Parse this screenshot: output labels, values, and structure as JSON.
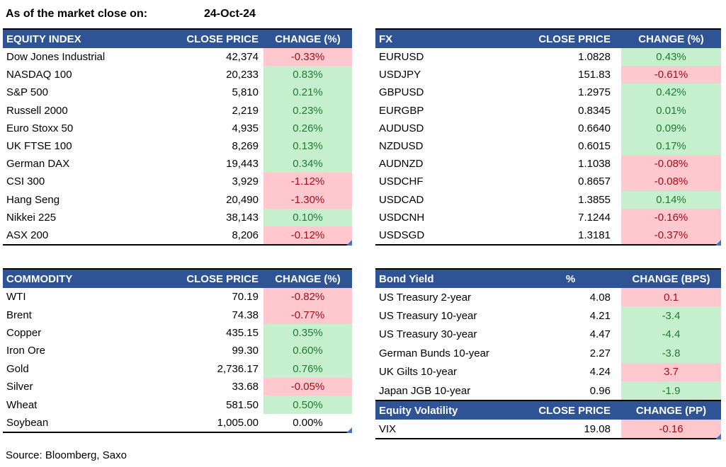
{
  "meta": {
    "as_of_label": "As of the market close on:",
    "as_of_date": "24-Oct-24",
    "source": "Source: Bloomberg, Saxo"
  },
  "colors": {
    "header_bg": "#2F5496",
    "header_text": "#FFFFFF",
    "positive_bg": "#C6EFCE",
    "positive_text": "#1E7B34",
    "negative_bg": "#FFC7CE",
    "negative_text": "#A50E15",
    "corner_marker_blue": "#4472C4",
    "error_marker_green": "#22A222"
  },
  "icons": {
    "error_marker": "formula-error-triangle (green, top-left of cell)",
    "corner_marker": "range-corner-marker (blue, bottom-right of table)"
  },
  "tables": [
    {
      "id": "equity",
      "columns": [
        "EQUITY INDEX",
        "CLOSE PRICE",
        "CHANGE (%)"
      ],
      "align_price_header": "right",
      "corner_marker": true,
      "rows": [
        {
          "name": "Dow Jones Industrial",
          "price": "42,374",
          "change": "-0.33%",
          "highlight": "red"
        },
        {
          "name": "NASDAQ 100",
          "price": "20,233",
          "change": "0.83%",
          "highlight": "green"
        },
        {
          "name": "S&P 500",
          "price": "5,810",
          "change": "0.21%",
          "highlight": "green"
        },
        {
          "name": "Russell 2000",
          "price": "2,219",
          "change": "0.23%",
          "highlight": "green"
        },
        {
          "name": "Euro Stoxx 50",
          "price": "4,935",
          "change": "0.26%",
          "highlight": "green"
        },
        {
          "name": "UK FTSE 100",
          "price": "8,269",
          "change": "0.13%",
          "highlight": "green"
        },
        {
          "name": "German DAX",
          "price": "19,443",
          "change": "0.34%",
          "highlight": "green"
        },
        {
          "name": "CSI 300",
          "price": "3,929",
          "change": "-1.12%",
          "highlight": "red"
        },
        {
          "name": "Hang Seng",
          "price": "20,490",
          "change": "-1.30%",
          "highlight": "red"
        },
        {
          "name": "Nikkei 225",
          "price": "38,143",
          "change": "0.10%",
          "highlight": "green"
        },
        {
          "name": "ASX 200",
          "price": "8,206",
          "change": "-0.12%",
          "highlight": "red"
        }
      ]
    },
    {
      "id": "fx",
      "columns": [
        "FX",
        "CLOSE PRICE",
        "CHANGE (%)"
      ],
      "align_price_header": "right",
      "corner_marker": true,
      "rows": [
        {
          "name": "EURUSD",
          "price": "1.0828",
          "change": "0.43%",
          "highlight": "green"
        },
        {
          "name": "USDJPY",
          "price": "151.83",
          "change": "-0.61%",
          "highlight": "red"
        },
        {
          "name": "GBPUSD",
          "price": "1.2975",
          "change": "0.42%",
          "highlight": "green"
        },
        {
          "name": "EURGBP",
          "price": "0.8345",
          "change": "0.01%",
          "highlight": "green"
        },
        {
          "name": "AUDUSD",
          "price": "0.6640",
          "change": "0.09%",
          "highlight": "green"
        },
        {
          "name": "NZDUSD",
          "price": "0.6015",
          "change": "0.17%",
          "highlight": "green"
        },
        {
          "name": "AUDNZD",
          "price": "1.1038",
          "change": "-0.08%",
          "highlight": "red"
        },
        {
          "name": "USDCHF",
          "price": "0.8657",
          "change": "-0.08%",
          "highlight": "red"
        },
        {
          "name": "USDCAD",
          "price": "1.3855",
          "change": "0.14%",
          "highlight": "green"
        },
        {
          "name": "USDCNH",
          "price": "7.1244",
          "change": "-0.16%",
          "highlight": "red"
        },
        {
          "name": "USDSGD",
          "price": "1.3181",
          "change": "-0.37%",
          "highlight": "red"
        }
      ]
    },
    {
      "id": "commodity",
      "columns": [
        "COMMODITY",
        "CLOSE PRICE",
        "CHANGE (%)"
      ],
      "align_price_header": "right",
      "corner_marker": true,
      "rows": [
        {
          "name": "WTI",
          "price": "70.19",
          "change": "-0.82%",
          "highlight": "red"
        },
        {
          "name": "Brent",
          "price": "74.38",
          "change": "-0.77%",
          "highlight": "red"
        },
        {
          "name": "Copper",
          "price": "435.15",
          "change": "0.35%",
          "highlight": "green"
        },
        {
          "name": "Iron Ore",
          "price": "99.30",
          "change": "0.60%",
          "highlight": "green"
        },
        {
          "name": "Gold",
          "price": "2,736.17",
          "change": "0.76%",
          "highlight": "green"
        },
        {
          "name": "Silver",
          "price": "33.68",
          "change": "-0.05%",
          "highlight": "red"
        },
        {
          "name": "Wheat",
          "price": "581.50",
          "change": "0.50%",
          "highlight": "green"
        },
        {
          "name": "Soybean",
          "price": "1,005.00",
          "change": "0.00%",
          "highlight": "none"
        }
      ]
    },
    {
      "id": "bond",
      "columns": [
        "Bond Yield",
        "%",
        "CHANGE (BPS)"
      ],
      "align_price_header": "center",
      "corner_marker": false,
      "rows": [
        {
          "name": "US Treasury 2-year",
          "price": "4.08",
          "change": "0.1",
          "highlight": "red"
        },
        {
          "name": "US Treasury 10-year",
          "price": "4.21",
          "change": "-3.4",
          "highlight": "green"
        },
        {
          "name": "US Treasury 30-year",
          "price": "4.47",
          "change": "-4.4",
          "highlight": "green"
        },
        {
          "name": "German Bunds 10-year",
          "price": "2.27",
          "change": "-3.8",
          "highlight": "green"
        },
        {
          "name": "UK Gilts 10-year",
          "price": "4.24",
          "change": "3.7",
          "highlight": "red"
        },
        {
          "name": "Japan JGB 10-year",
          "price": "0.96",
          "change": "-1.9",
          "highlight": "green"
        }
      ]
    },
    {
      "id": "vol",
      "columns": [
        "Equity Volatility",
        "CLOSE PRICE",
        "CHANGE (PP)"
      ],
      "align_price_header": "right",
      "corner_marker": true,
      "header_error_markers": {
        "price": true,
        "change": true
      },
      "rows": [
        {
          "name": "VIX",
          "price": "19.08",
          "change": "-0.16",
          "highlight": "red",
          "error_marker": true
        }
      ]
    }
  ]
}
